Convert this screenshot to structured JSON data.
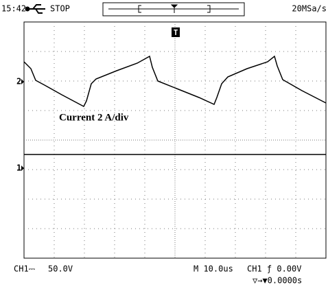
{
  "status_bar": {
    "time": "15:42",
    "state": "STOP",
    "sample_rate": "20MSa/s"
  },
  "screen": {
    "trigger_marker": "T",
    "annotation": "Current 2 A/div",
    "ch2_marker": "2",
    "ch1_marker": "1"
  },
  "footer": {
    "ch1_coupling": "CH1⎓",
    "ch1_scale": "50.0V",
    "timebase": "M 10.0us",
    "trigger": "CH1 ƒ 0.00V",
    "trigger_offset": "▽→▼0.0000s"
  }
}
